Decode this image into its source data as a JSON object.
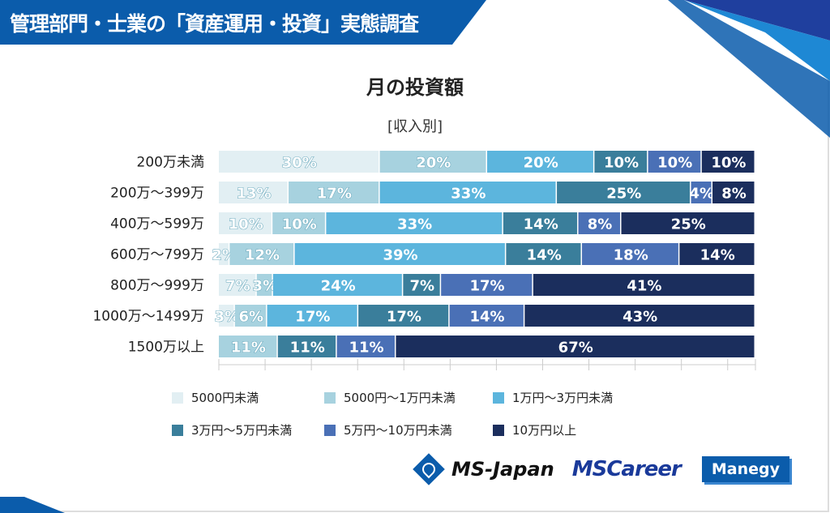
{
  "header": {
    "banner": "管理部門・士業の「資産運用・投資」実態調査"
  },
  "chart_data": {
    "type": "bar",
    "orientation": "horizontal",
    "stacked": true,
    "title": "月の投資額",
    "subtitle": "[収入別]",
    "xlim": [
      0,
      100
    ],
    "legend_position": "bottom",
    "categories": [
      "200万未満",
      "200万～399万",
      "400万～599万",
      "600万～799万",
      "800万～999万",
      "1000万～1499万",
      "1500万以上"
    ],
    "series": [
      {
        "name": "5000円未満",
        "color": "#e2eff3",
        "values": [
          30,
          13,
          10,
          2,
          7,
          3,
          0
        ]
      },
      {
        "name": "5000円～1万円未満",
        "color": "#a7d2df",
        "values": [
          20,
          17,
          10,
          12,
          3,
          6,
          11
        ]
      },
      {
        "name": "1万円～3万円未満",
        "color": "#5cb5dd",
        "values": [
          20,
          33,
          33,
          39,
          24,
          17,
          0
        ]
      },
      {
        "name": "3万円～5万円未満",
        "color": "#3a7e9b",
        "values": [
          10,
          25,
          14,
          14,
          7,
          17,
          11
        ]
      },
      {
        "name": "5万円～10万円未満",
        "color": "#4a70b6",
        "values": [
          10,
          4,
          8,
          18,
          17,
          14,
          11
        ]
      },
      {
        "name": "10万円以上",
        "color": "#1b2e5d",
        "values": [
          10,
          8,
          25,
          14,
          41,
          43,
          67
        ]
      }
    ]
  },
  "logos": {
    "ms_japan": "MS-Japan",
    "mscareer": "MSCareer",
    "manegy": "Manegy"
  }
}
